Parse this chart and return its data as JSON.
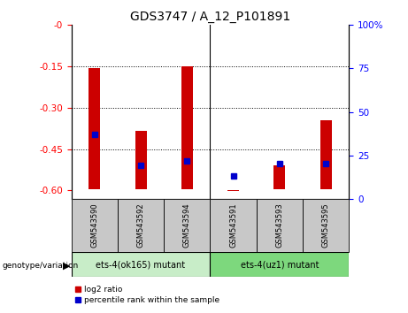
{
  "title": "GDS3747 / A_12_P101891",
  "samples": [
    "GSM543590",
    "GSM543592",
    "GSM543594",
    "GSM543591",
    "GSM543593",
    "GSM543595"
  ],
  "log2_bottom": [
    -0.595,
    -0.597,
    -0.597,
    -0.603,
    -0.597,
    -0.595
  ],
  "log2_top": [
    -0.155,
    -0.385,
    -0.15,
    -0.6,
    -0.508,
    -0.345
  ],
  "percentile_rank": [
    37,
    19,
    22,
    13,
    20,
    20
  ],
  "group1_label": "ets-4(ok165) mutant",
  "group2_label": "ets-4(uz1) mutant",
  "group1_color": "#c8edc8",
  "group2_color": "#7dd87d",
  "bar_color": "#cc0000",
  "dot_color": "#0000cc",
  "ylim_left": [
    -0.63,
    0.0
  ],
  "ylim_right": [
    0,
    100
  ],
  "yticks_left": [
    0.0,
    -0.15,
    -0.3,
    -0.45,
    -0.6
  ],
  "yticks_right": [
    0,
    25,
    50,
    75,
    100
  ],
  "tick_bg": "#c8c8c8",
  "genotype_label": "genotype/variation"
}
